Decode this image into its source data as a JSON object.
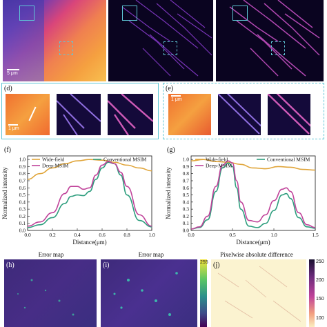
{
  "panels": {
    "top_scale": "5 μm",
    "d_label": "(d)",
    "d_scale": "1 μm",
    "e_label": "(e)",
    "e_scale": "1 μm",
    "f_label": "(f)",
    "g_label": "(g)",
    "h_label": "(h)",
    "i_label": "(i)",
    "j_label": "(j)",
    "h_title": "Error map",
    "i_title": "Error map",
    "j_title": "Pixelwise absolute difference",
    "cb1_max": "255",
    "cb2_ticks": [
      "250",
      "200",
      "150",
      "100"
    ]
  },
  "colors": {
    "widefield": "#e0a53a",
    "conventional": "#2e9e7e",
    "deep": "#c0439a",
    "cyan_box": "#5fc7d6"
  },
  "chart_data": [
    {
      "type": "line",
      "panel": "(f)",
      "xlabel": "Distance(μm)",
      "ylabel": "Normalized intensity",
      "xlim": [
        0,
        1.0
      ],
      "ylim": [
        0,
        1.05
      ],
      "xticks": [
        "0.0",
        "0.2",
        "0.4",
        "0.6",
        "0.8",
        "1.0"
      ],
      "yticks": [
        "0.0",
        "0.1",
        "0.2",
        "0.3",
        "0.4",
        "0.5",
        "0.6",
        "0.7",
        "0.8",
        "0.9",
        "1.0"
      ],
      "legend": "top",
      "series": [
        {
          "name": "Wide-field",
          "x": [
            0,
            0.1,
            0.2,
            0.3,
            0.4,
            0.5,
            0.6,
            0.7,
            0.8,
            0.9,
            1.0
          ],
          "y": [
            0.72,
            0.8,
            0.88,
            0.94,
            0.98,
            1.0,
            0.99,
            0.96,
            0.92,
            0.88,
            0.84
          ]
        },
        {
          "name": "Conventional MSIM",
          "x": [
            0,
            0.1,
            0.2,
            0.3,
            0.35,
            0.4,
            0.45,
            0.5,
            0.55,
            0.6,
            0.65,
            0.7,
            0.75,
            0.8,
            0.9,
            1.0
          ],
          "y": [
            0.04,
            0.08,
            0.18,
            0.38,
            0.48,
            0.5,
            0.49,
            0.55,
            0.72,
            0.88,
            0.96,
            0.94,
            0.78,
            0.5,
            0.14,
            0.05
          ]
        },
        {
          "name": "Deep-MSIM",
          "x": [
            0,
            0.1,
            0.2,
            0.3,
            0.35,
            0.4,
            0.45,
            0.5,
            0.55,
            0.6,
            0.65,
            0.7,
            0.75,
            0.8,
            0.9,
            1.0
          ],
          "y": [
            0.06,
            0.12,
            0.25,
            0.52,
            0.62,
            0.62,
            0.58,
            0.6,
            0.78,
            0.92,
            0.97,
            0.94,
            0.82,
            0.62,
            0.22,
            0.06
          ]
        }
      ]
    },
    {
      "type": "line",
      "panel": "(g)",
      "xlabel": "Distance(μm)",
      "ylabel": "Normalized intensity",
      "xlim": [
        0,
        1.5
      ],
      "ylim": [
        0,
        1.05
      ],
      "xticks": [
        "0.0",
        "0.5",
        "1.0",
        "1.5"
      ],
      "yticks": [
        "0.0",
        "0.1",
        "0.2",
        "0.3",
        "0.4",
        "0.5",
        "0.6",
        "0.7",
        "0.8",
        "0.9",
        "1.0"
      ],
      "legend": "top",
      "series": [
        {
          "name": "Wide-field",
          "x": [
            0,
            0.15,
            0.3,
            0.45,
            0.6,
            0.75,
            0.9,
            1.05,
            1.2,
            1.35,
            1.5
          ],
          "y": [
            0.98,
            1.0,
            0.97,
            0.96,
            0.93,
            0.88,
            0.87,
            0.9,
            0.89,
            0.86,
            0.85
          ]
        },
        {
          "name": "Conventional MSIM",
          "x": [
            0,
            0.1,
            0.2,
            0.3,
            0.38,
            0.45,
            0.5,
            0.55,
            0.6,
            0.7,
            0.8,
            0.9,
            1.0,
            1.1,
            1.15,
            1.2,
            1.3,
            1.4,
            1.5
          ],
          "y": [
            0.02,
            0.04,
            0.15,
            0.55,
            0.88,
            0.95,
            0.9,
            0.6,
            0.3,
            0.06,
            0.04,
            0.1,
            0.28,
            0.5,
            0.52,
            0.45,
            0.18,
            0.05,
            0.03
          ]
        },
        {
          "name": "Deep-MSIM",
          "x": [
            0,
            0.1,
            0.2,
            0.3,
            0.38,
            0.45,
            0.5,
            0.55,
            0.6,
            0.7,
            0.8,
            0.9,
            1.0,
            1.1,
            1.15,
            1.2,
            1.3,
            1.4,
            1.5
          ],
          "y": [
            0.02,
            0.05,
            0.2,
            0.62,
            0.92,
            0.98,
            0.95,
            0.7,
            0.4,
            0.14,
            0.12,
            0.22,
            0.42,
            0.58,
            0.6,
            0.55,
            0.25,
            0.08,
            0.04
          ]
        }
      ]
    }
  ]
}
